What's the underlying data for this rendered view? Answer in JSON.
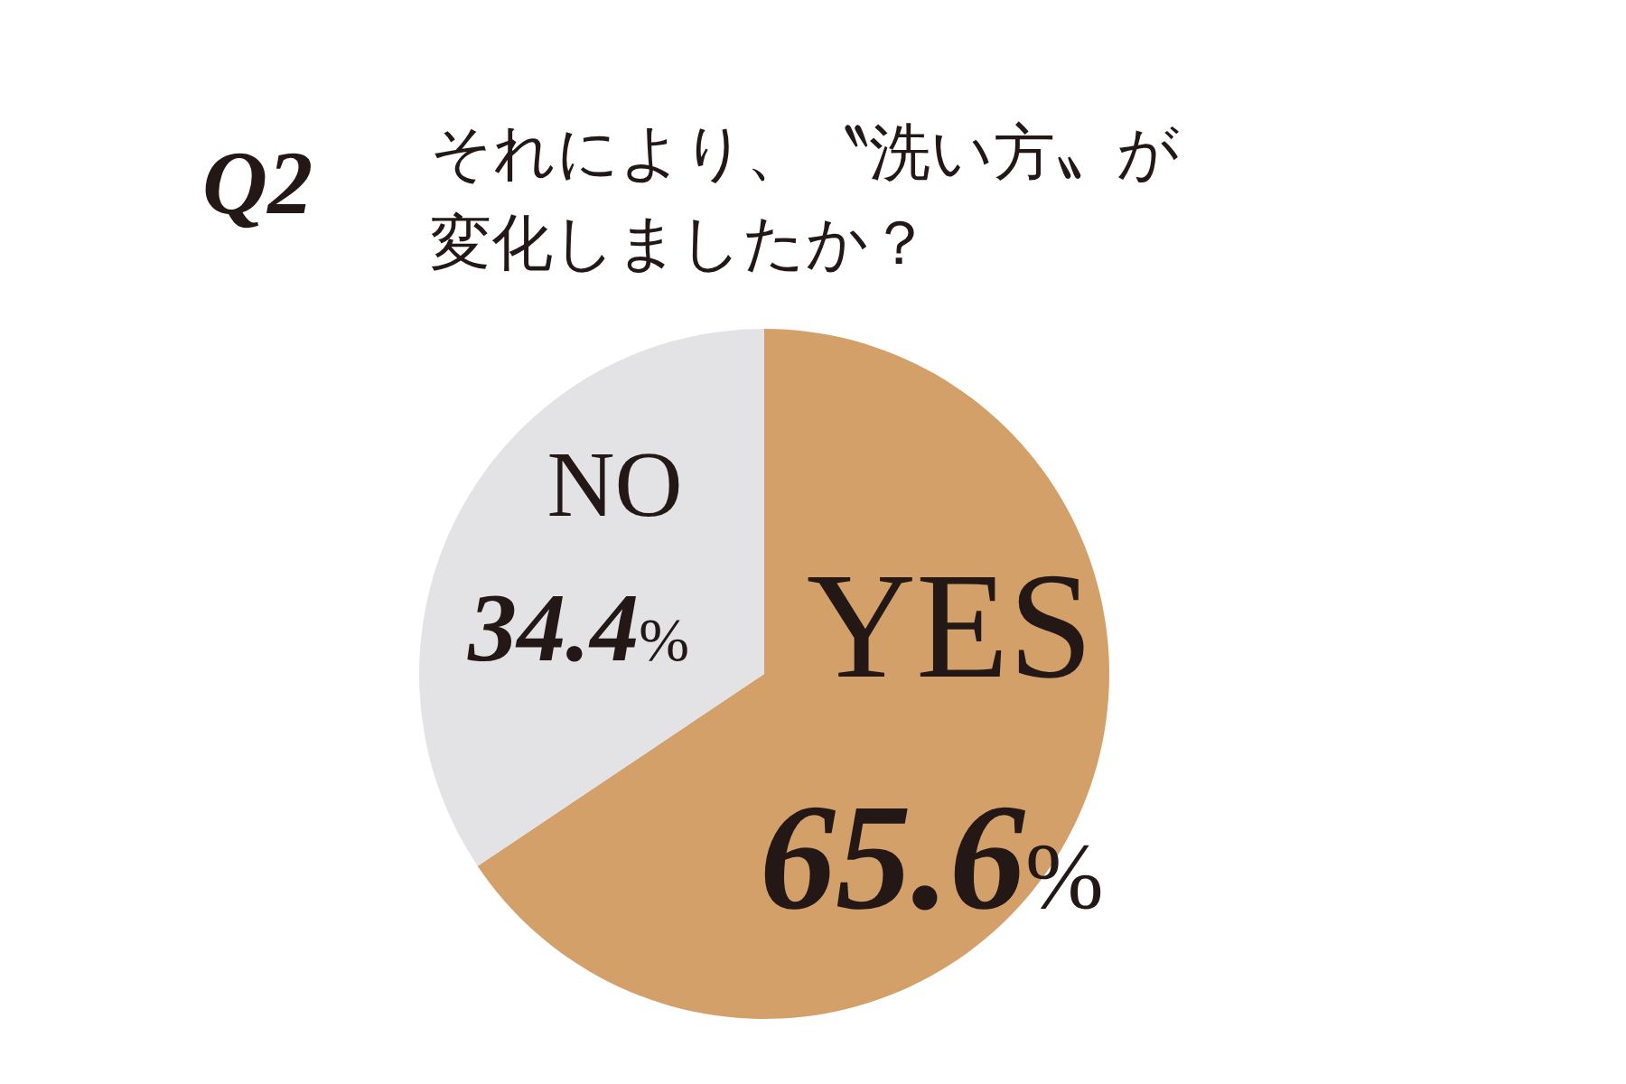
{
  "chart_data": {
    "type": "pie",
    "title": "Q2",
    "subtitle": "それにより、〝洗い方〟が変化しましたか？",
    "categories": [
      "YES",
      "NO"
    ],
    "values": [
      65.6,
      34.4
    ],
    "colors": [
      "#d4a06a",
      "#e3e3e5"
    ],
    "value_labels": [
      "65.6%",
      "34.4%"
    ]
  }
}
